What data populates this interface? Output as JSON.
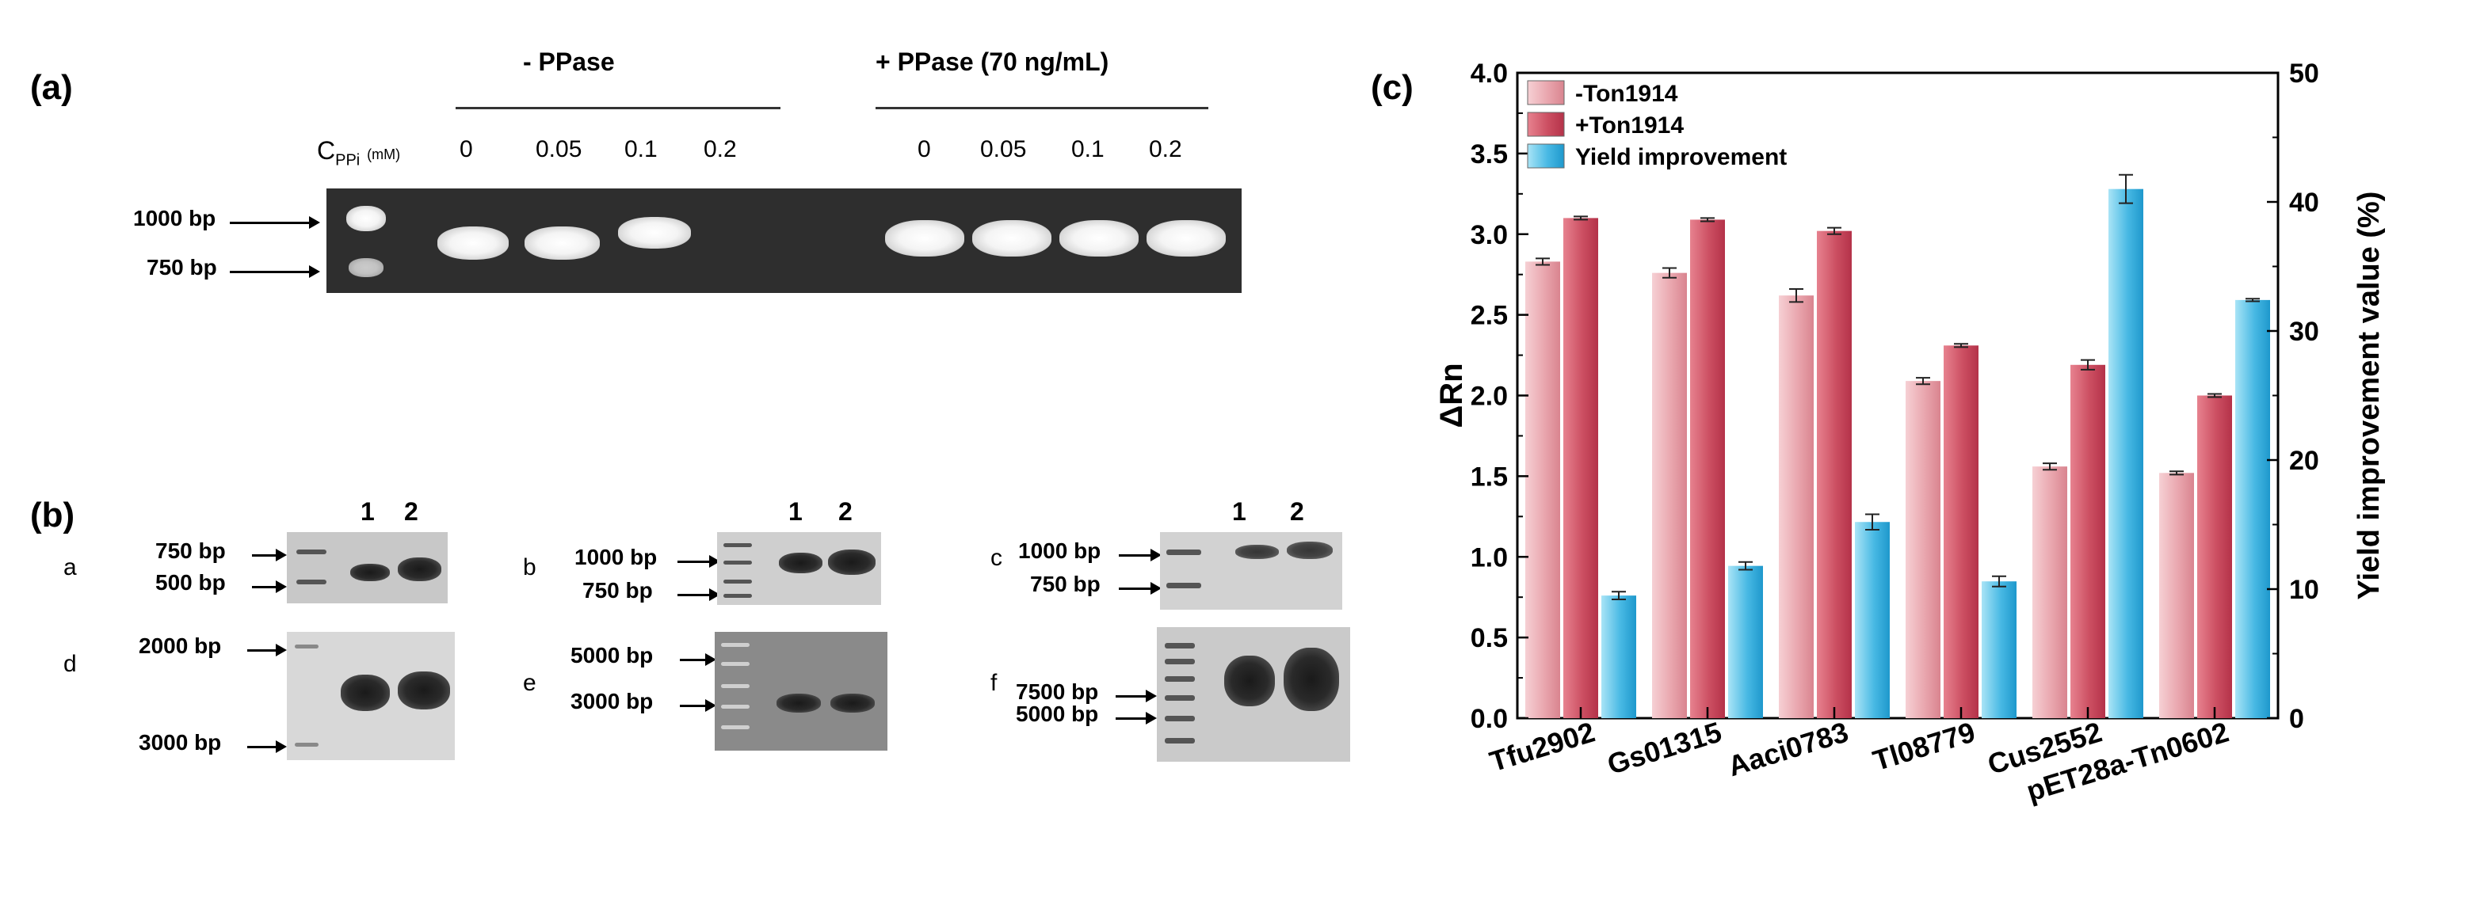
{
  "panel_a": {
    "label": "(a)",
    "group_minus": "- PPase",
    "group_plus": "+ PPase (70 ng/mL)",
    "cppi_main": "C",
    "cppi_sub": "PPi",
    "cppi_unit": "(mM)",
    "concentrations_minus": [
      "0",
      "0.05",
      "0.1",
      "0.2"
    ],
    "concentrations_plus": [
      "0",
      "0.05",
      "0.1",
      "0.2"
    ],
    "marker_top": "1000 bp",
    "marker_bottom": "750 bp"
  },
  "panel_b": {
    "label": "(b)",
    "lane_1": "1",
    "lane_2": "2",
    "sub_a": "a",
    "sub_b": "b",
    "sub_c": "c",
    "sub_d": "d",
    "sub_e": "e",
    "sub_f": "f",
    "a_top": "750 bp",
    "a_bottom": "500 bp",
    "b_top": "1000 bp",
    "b_bottom": "750 bp",
    "c_top": "1000 bp",
    "c_bottom": "750 bp",
    "d_top": "2000 bp",
    "d_bottom": "3000 bp",
    "e_top": "5000 bp",
    "e_bottom": "3000 bp",
    "f_top": "7500 bp",
    "f_bottom": "5000 bp"
  },
  "panel_c": {
    "label": "(c)"
  },
  "chart_data": {
    "type": "bar",
    "categories": [
      "Tfu2902",
      "Gs01315",
      "Aaci0783",
      "Tl08779",
      "Cus2552",
      "pET28a-Tn0602"
    ],
    "series": [
      {
        "name": "-Ton1914",
        "axis": "left",
        "values": [
          2.83,
          2.76,
          2.62,
          2.09,
          1.56,
          1.52
        ],
        "errors": [
          0.02,
          0.03,
          0.04,
          0.02,
          0.02,
          0.01
        ],
        "color": "#e8a3ab"
      },
      {
        "name": "+Ton1914",
        "axis": "left",
        "values": [
          3.1,
          3.09,
          3.02,
          2.31,
          2.19,
          2.0
        ],
        "errors": [
          0.01,
          0.01,
          0.02,
          0.01,
          0.03,
          0.01
        ],
        "color": "#c94a5c"
      },
      {
        "name": "Yield improvement",
        "axis": "right",
        "values": [
          9.5,
          11.8,
          15.2,
          10.6,
          41.0,
          32.4
        ],
        "errors": [
          0.3,
          0.3,
          0.6,
          0.4,
          1.1,
          0.1
        ],
        "color": "#3bb0e0"
      }
    ],
    "ylabel": "ΔRn",
    "ylabel_right": "Yield improvement value (%)",
    "ylim": [
      0.0,
      4.0
    ],
    "ylim_right": [
      0,
      50
    ],
    "yticks": [
      "0.0",
      "0.5",
      "1.0",
      "1.5",
      "2.0",
      "2.5",
      "3.0",
      "3.5",
      "4.0"
    ],
    "yticks_right": [
      "0",
      "10",
      "20",
      "30",
      "40",
      "50"
    ],
    "legend_position": "top-left",
    "grid": false
  }
}
